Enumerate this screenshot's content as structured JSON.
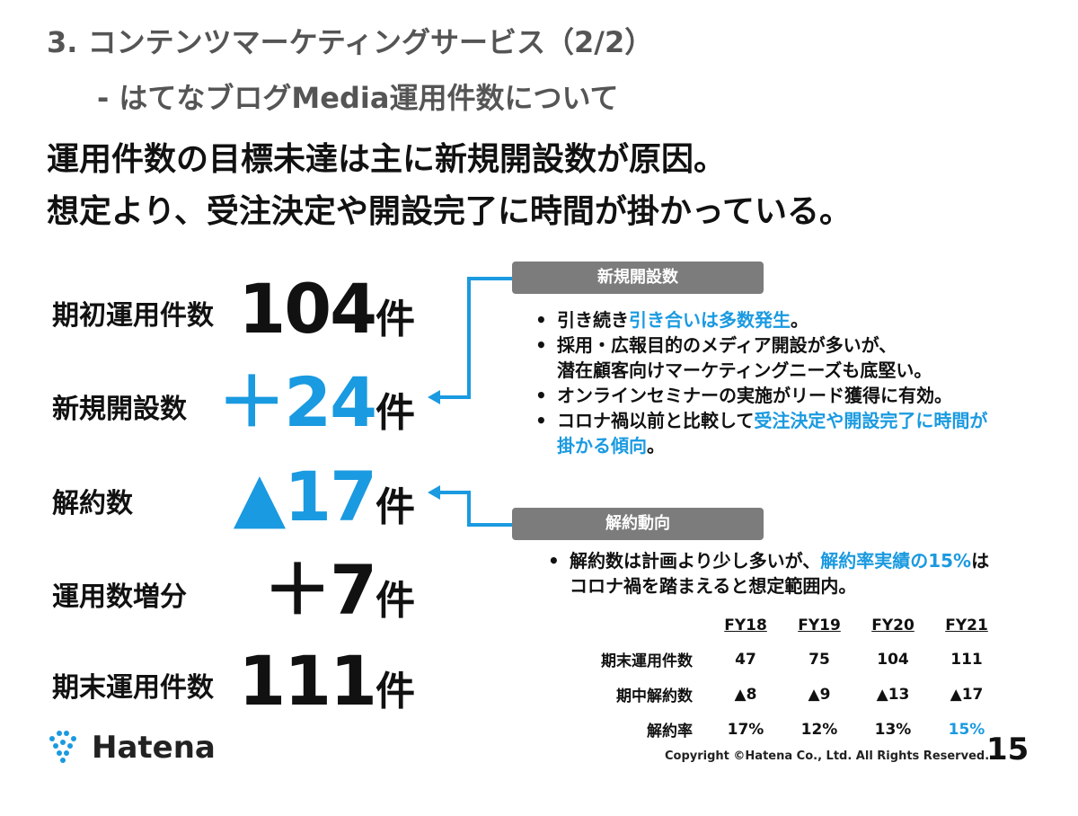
{
  "title": {
    "line1": "3. コンテンツマーケティングサービス（2/2）",
    "line2": "- はてなブログMedia運用件数について"
  },
  "headline": {
    "line1": "運用件数の目標未達は主に新規開設数が原因。",
    "line2": "想定より、受注決定や開設完了に時間が掛かっている。"
  },
  "metrics": [
    {
      "label": "期初運用件数",
      "value": "104",
      "unit": "件",
      "color": "#111111"
    },
    {
      "label": "新規開設数",
      "value": "＋24",
      "unit": "件",
      "color": "#1a9ae0"
    },
    {
      "label": "解約数",
      "value": "▲17",
      "unit": "件",
      "color": "#1a9ae0"
    },
    {
      "label": "運用数増分",
      "value": "＋7",
      "unit": "件",
      "color": "#111111"
    },
    {
      "label": "期末運用件数",
      "value": "111",
      "unit": "件",
      "color": "#111111"
    }
  ],
  "new_box": {
    "header": "新規開設数",
    "b1_text": "引き続き",
    "b1_hl": "引き合いは多数発生",
    "b1_end": "。",
    "b2_line1": "採用・広報目的のメディア開設が多いが、",
    "b2_line2": "潜在顧客向けマーケティングニーズも底堅い。",
    "b3": "オンラインセミナーの実施がリード獲得に有効。",
    "b4_text": "コロナ禍以前と比較して",
    "b4_hl1": "受注決定や開設完了に時間が",
    "b4_hl2": "掛かる傾向",
    "b4_end": "。"
  },
  "churn_box": {
    "header": "解約動向",
    "b1_text": "解約数は計画より少し多いが、",
    "b1_hl": "解約率実績の15%",
    "b1_end": "は",
    "b1_line2": "コロナ禍を踏まえると想定範囲内。"
  },
  "table": {
    "headers": [
      "FY18",
      "FY19",
      "FY20",
      "FY21"
    ],
    "rows": [
      {
        "label": "期末運用件数",
        "values": [
          "47",
          "75",
          "104",
          "111"
        ]
      },
      {
        "label": "期中解約数",
        "values": [
          "▲8",
          "▲9",
          "▲13",
          "▲17"
        ]
      },
      {
        "label": "解約率",
        "values": [
          "17%",
          "12%",
          "13%",
          "15%"
        ]
      }
    ],
    "highlight_color": "#1a9ae0"
  },
  "footer": {
    "logo_text": "Hatena",
    "copyright": "Copyright ©Hatena Co., Ltd. All Rights Reserved.",
    "page_number": "15"
  },
  "colors": {
    "accent": "#1a9ae0",
    "header_gray": "#7c7c7c",
    "title_gray": "#555555"
  }
}
